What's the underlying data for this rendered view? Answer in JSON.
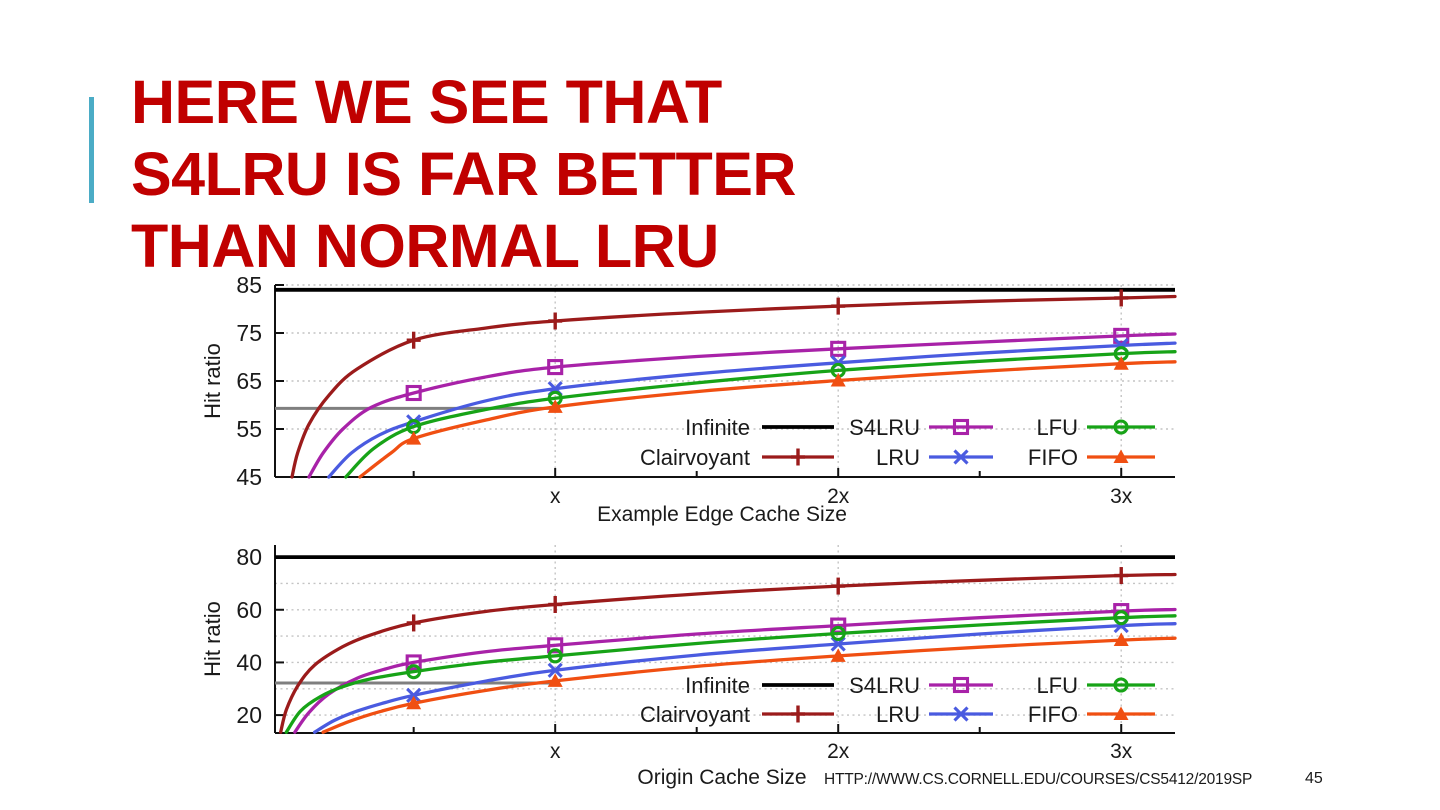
{
  "slide": {
    "title": "HERE WE SEE THAT\nS4LRU IS FAR BETTER\nTHAN NORMAL LRU",
    "title_color": "#C00000",
    "accent_bar_color": "#4BACC6",
    "footer": {
      "url": "HTTP://WWW.CS.CORNELL.EDU/COURSES/CS5412/2019SP",
      "page_number": "45"
    }
  },
  "chart_data": [
    {
      "type": "line",
      "name": "edge-cache-chart",
      "xlabel": "Example Edge Cache Size",
      "ylabel": "Hit ratio",
      "xlim": [
        0.01,
        3.19
      ],
      "ylim": [
        45,
        85
      ],
      "yticks": [
        45,
        55,
        65,
        75,
        85
      ],
      "grid_y": [
        55,
        65,
        75,
        85
      ],
      "grid_x": [
        1,
        2,
        3
      ],
      "x_major_ticks": [
        1,
        2,
        3
      ],
      "x_tick_labels": [
        "x",
        "2x",
        "3x"
      ],
      "x_minor_ticks": [
        0.5,
        1.5,
        2.5
      ],
      "marker_x": [
        0.5,
        1,
        2,
        3
      ],
      "legend_order": [
        "Infinite",
        "Clairvoyant",
        "S4LRU",
        "LRU",
        "LFU",
        "FIFO"
      ],
      "reference_line": {
        "value": 59.3,
        "color": "#7F7F7F",
        "x_range": [
          0.01,
          1
        ]
      },
      "series": [
        {
          "name": "Infinite",
          "type": "hline",
          "value": 84,
          "color": "#000000",
          "marker": "none"
        },
        {
          "name": "Clairvoyant",
          "color": "#9B1B1B",
          "marker": "plus",
          "points": [
            [
              0.07,
              45
            ],
            [
              0.09,
              50
            ],
            [
              0.13,
              56
            ],
            [
              0.2,
              62
            ],
            [
              0.3,
              67.5
            ],
            [
              0.5,
              73.5
            ],
            [
              0.75,
              76
            ],
            [
              1,
              77.5
            ],
            [
              1.5,
              79.3
            ],
            [
              2,
              80.6
            ],
            [
              2.5,
              81.6
            ],
            [
              3,
              82.3
            ],
            [
              3.19,
              82.6
            ]
          ]
        },
        {
          "name": "S4LRU",
          "color": "#A822A8",
          "marker": "square",
          "points": [
            [
              0.13,
              45
            ],
            [
              0.18,
              50
            ],
            [
              0.25,
              55
            ],
            [
              0.35,
              59.5
            ],
            [
              0.5,
              62.5
            ],
            [
              0.75,
              65.8
            ],
            [
              1,
              67.9
            ],
            [
              1.5,
              70.1
            ],
            [
              2,
              71.7
            ],
            [
              2.5,
              73.1
            ],
            [
              3,
              74.4
            ],
            [
              3.19,
              74.8
            ]
          ]
        },
        {
          "name": "LRU",
          "color": "#4A5BE0",
          "marker": "x",
          "points": [
            [
              0.2,
              45
            ],
            [
              0.28,
              50
            ],
            [
              0.38,
              53.8
            ],
            [
              0.5,
              56.5
            ],
            [
              0.75,
              60.8
            ],
            [
              1,
              63.4
            ],
            [
              1.5,
              66.5
            ],
            [
              2,
              68.8
            ],
            [
              2.5,
              70.8
            ],
            [
              3,
              72.4
            ],
            [
              3.19,
              72.9
            ]
          ]
        },
        {
          "name": "LFU",
          "color": "#17A317",
          "marker": "circle",
          "points": [
            [
              0.26,
              45
            ],
            [
              0.36,
              51
            ],
            [
              0.5,
              55.5
            ],
            [
              0.75,
              59
            ],
            [
              1,
              61.4
            ],
            [
              1.5,
              64.6
            ],
            [
              2,
              67.2
            ],
            [
              2.5,
              69.1
            ],
            [
              3,
              70.7
            ],
            [
              3.19,
              71.1
            ]
          ]
        },
        {
          "name": "FIFO",
          "color": "#F04F12",
          "marker": "triangle",
          "points": [
            [
              0.31,
              45
            ],
            [
              0.42,
              50
            ],
            [
              0.5,
              53
            ],
            [
              0.75,
              56.8
            ],
            [
              1,
              59.6
            ],
            [
              1.5,
              62.8
            ],
            [
              2,
              65.1
            ],
            [
              2.5,
              67
            ],
            [
              3,
              68.6
            ],
            [
              3.19,
              69
            ]
          ]
        }
      ]
    },
    {
      "type": "line",
      "name": "origin-cache-chart",
      "xlabel": "Origin Cache Size",
      "ylabel": "Hit ratio",
      "xlim": [
        0.01,
        3.19
      ],
      "ylim": [
        13.2,
        84.6
      ],
      "yticks": [
        20,
        40,
        60,
        80
      ],
      "grid_y": [
        20,
        30,
        40,
        50,
        60,
        70
      ],
      "grid_x": [
        1,
        2,
        3
      ],
      "x_major_ticks": [
        1,
        2,
        3
      ],
      "x_tick_labels": [
        "x",
        "2x",
        "3x"
      ],
      "x_minor_ticks": [
        0.5,
        1.5,
        2.5
      ],
      "marker_x": [
        0.5,
        1,
        2,
        3
      ],
      "legend_order": [
        "Infinite",
        "Clairvoyant",
        "S4LRU",
        "LRU",
        "LFU",
        "FIFO"
      ],
      "reference_line": {
        "value": 32.2,
        "color": "#7F7F7F",
        "x_range": [
          0.01,
          1
        ]
      },
      "series": [
        {
          "name": "Infinite",
          "type": "hline",
          "value": 80,
          "color": "#000000",
          "marker": "none"
        },
        {
          "name": "Clairvoyant",
          "color": "#9B1B1B",
          "marker": "plus",
          "points": [
            [
              0.03,
              13.5
            ],
            [
              0.05,
              22
            ],
            [
              0.09,
              31
            ],
            [
              0.15,
              39
            ],
            [
              0.25,
              46
            ],
            [
              0.35,
              50.5
            ],
            [
              0.5,
              55
            ],
            [
              0.75,
              59.3
            ],
            [
              1,
              62
            ],
            [
              1.5,
              66
            ],
            [
              2,
              69
            ],
            [
              2.5,
              71.2
            ],
            [
              3,
              73
            ],
            [
              3.19,
              73.4
            ]
          ]
        },
        {
          "name": "S4LRU",
          "color": "#A822A8",
          "marker": "square",
          "points": [
            [
              0.08,
              13.5
            ],
            [
              0.13,
              21
            ],
            [
              0.2,
              28
            ],
            [
              0.3,
              34
            ],
            [
              0.4,
              37.5
            ],
            [
              0.5,
              40
            ],
            [
              0.75,
              44
            ],
            [
              1,
              46.5
            ],
            [
              1.5,
              50.8
            ],
            [
              2,
              54
            ],
            [
              2.5,
              57
            ],
            [
              3,
              59.5
            ],
            [
              3.19,
              60.1
            ]
          ]
        },
        {
          "name": "LRU",
          "color": "#4A5BE0",
          "marker": "x",
          "points": [
            [
              0.15,
              13.5
            ],
            [
              0.22,
              18
            ],
            [
              0.3,
              21.5
            ],
            [
              0.4,
              24.8
            ],
            [
              0.5,
              27.5
            ],
            [
              0.75,
              32.8
            ],
            [
              1,
              37
            ],
            [
              1.5,
              42.8
            ],
            [
              2,
              47
            ],
            [
              2.5,
              50.8
            ],
            [
              3,
              54
            ],
            [
              3.19,
              54.7
            ]
          ]
        },
        {
          "name": "LFU",
          "color": "#17A317",
          "marker": "circle",
          "points": [
            [
              0.05,
              13.5
            ],
            [
              0.1,
              21.5
            ],
            [
              0.17,
              27
            ],
            [
              0.25,
              30.8
            ],
            [
              0.35,
              33.8
            ],
            [
              0.5,
              36.5
            ],
            [
              0.75,
              40
            ],
            [
              1,
              42.5
            ],
            [
              1.5,
              47.2
            ],
            [
              2,
              51
            ],
            [
              2.5,
              54.2
            ],
            [
              3,
              57
            ],
            [
              3.19,
              57.7
            ]
          ]
        },
        {
          "name": "FIFO",
          "color": "#F04F12",
          "marker": "triangle",
          "points": [
            [
              0.18,
              13.5
            ],
            [
              0.27,
              17.5
            ],
            [
              0.38,
              21.3
            ],
            [
              0.5,
              24.5
            ],
            [
              0.75,
              29.3
            ],
            [
              1,
              33
            ],
            [
              1.5,
              38.5
            ],
            [
              2,
              42.5
            ],
            [
              2.5,
              45.8
            ],
            [
              3,
              48.5
            ],
            [
              3.19,
              49.2
            ]
          ]
        }
      ]
    }
  ]
}
